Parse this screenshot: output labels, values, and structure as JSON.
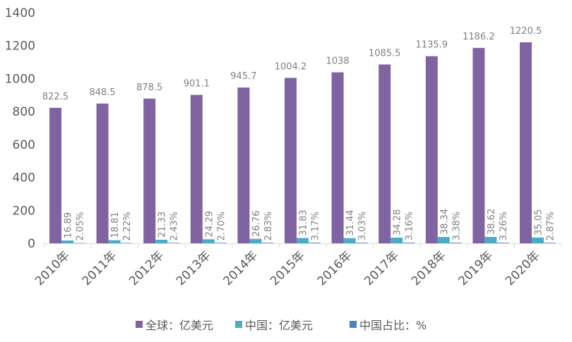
{
  "chart_data": {
    "type": "bar",
    "title": "",
    "xlabel": "",
    "ylabel": "",
    "ylim": [
      0,
      1400
    ],
    "yticks": [
      "0",
      "200",
      "400",
      "600",
      "800",
      "1000",
      "1200",
      "1400"
    ],
    "categories": [
      "2010年",
      "2011年",
      "2012年",
      "2013年",
      "2014年",
      "2015年",
      "2016年",
      "2017年",
      "2018年",
      "2019年",
      "2020年"
    ],
    "series": [
      {
        "name": "全球：亿美元",
        "color": "#8064a2",
        "values": [
          822.5,
          848.5,
          878.5,
          901.1,
          945.7,
          1004.2,
          1038,
          1085.5,
          1135.9,
          1186.2,
          1220.5
        ],
        "labels": [
          "822.5",
          "848.5",
          "878.5",
          "901.1",
          "945.7",
          "1004.2",
          "1038",
          "1085.5",
          "1135.9",
          "1186.2",
          "1220.5"
        ]
      },
      {
        "name": "中国：亿美元",
        "color": "#4bacc6",
        "values": [
          16.89,
          18.81,
          21.33,
          24.29,
          26.76,
          31.83,
          31.44,
          34.28,
          38.34,
          38.62,
          35.05
        ],
        "labels": [
          "16.89",
          "18.81",
          "21.33",
          "24.29",
          "26.76",
          "31.83",
          "31.44",
          "34.28",
          "38.34",
          "38.62",
          "35.05"
        ]
      },
      {
        "name": "中国占比：%",
        "color": "#4f81bd",
        "values": [
          2.05,
          2.22,
          2.43,
          2.7,
          2.83,
          3.17,
          3.03,
          3.16,
          3.38,
          3.26,
          2.87
        ],
        "labels": [
          "2.05%",
          "2.22%",
          "2.43%",
          "2.70%",
          "2.83%",
          "3.17%",
          "3.03%",
          "3.16%",
          "3.38%",
          "3.26%",
          "2.87%"
        ]
      }
    ],
    "legend": "bottom",
    "grid": false
  }
}
